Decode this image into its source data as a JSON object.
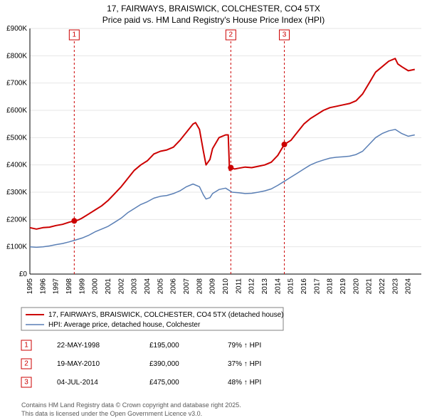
{
  "title_line1": "17, FAIRWAYS, BRAISWICK, COLCHESTER, CO4 5TX",
  "title_line2": "Price paid vs. HM Land Registry's House Price Index (HPI)",
  "chart": {
    "type": "line",
    "background_color": "#ffffff",
    "grid_color": "#e6e6e6",
    "axis_color": "#000000",
    "ylim": [
      0,
      900000
    ],
    "ytick_step": 100000,
    "y_labels": [
      "£0",
      "£100K",
      "£200K",
      "£300K",
      "£400K",
      "£500K",
      "£600K",
      "£700K",
      "£800K",
      "£900K"
    ],
    "x_years": [
      1995,
      1996,
      1997,
      1998,
      1999,
      2000,
      2001,
      2002,
      2003,
      2004,
      2005,
      2006,
      2007,
      2008,
      2009,
      2010,
      2011,
      2012,
      2013,
      2014,
      2015,
      2016,
      2017,
      2018,
      2019,
      2020,
      2021,
      2022,
      2023,
      2024
    ],
    "label_fontsize": 10,
    "series": [
      {
        "name": "17, FAIRWAYS, BRAISWICK, COLCHESTER, CO4 5TX (detached house)",
        "color": "#cc0000",
        "line_width": 2,
        "data": [
          [
            1995,
            170000
          ],
          [
            1995.5,
            165000
          ],
          [
            1996,
            170000
          ],
          [
            1996.5,
            172000
          ],
          [
            1997,
            178000
          ],
          [
            1997.5,
            182000
          ],
          [
            1998,
            190000
          ],
          [
            1998.4,
            195000
          ],
          [
            1998.5,
            195000
          ],
          [
            1998.8,
            200000
          ],
          [
            1999,
            205000
          ],
          [
            1999.5,
            220000
          ],
          [
            2000,
            235000
          ],
          [
            2000.5,
            250000
          ],
          [
            2001,
            270000
          ],
          [
            2001.5,
            295000
          ],
          [
            2002,
            320000
          ],
          [
            2002.5,
            350000
          ],
          [
            2003,
            380000
          ],
          [
            2003.5,
            400000
          ],
          [
            2004,
            415000
          ],
          [
            2004.5,
            440000
          ],
          [
            2005,
            450000
          ],
          [
            2005.5,
            455000
          ],
          [
            2006,
            465000
          ],
          [
            2006.5,
            490000
          ],
          [
            2007,
            520000
          ],
          [
            2007.5,
            550000
          ],
          [
            2007.7,
            555000
          ],
          [
            2008,
            530000
          ],
          [
            2008.3,
            450000
          ],
          [
            2008.5,
            400000
          ],
          [
            2008.8,
            420000
          ],
          [
            2009,
            460000
          ],
          [
            2009.5,
            500000
          ],
          [
            2010,
            510000
          ],
          [
            2010.2,
            510000
          ],
          [
            2010.3,
            380000
          ],
          [
            2010.4,
            390000
          ],
          [
            2010.7,
            385000
          ],
          [
            2011,
            388000
          ],
          [
            2011.5,
            392000
          ],
          [
            2012,
            390000
          ],
          [
            2012.5,
            395000
          ],
          [
            2013,
            400000
          ],
          [
            2013.5,
            410000
          ],
          [
            2014,
            435000
          ],
          [
            2014.5,
            475000
          ],
          [
            2015,
            490000
          ],
          [
            2015.5,
            520000
          ],
          [
            2016,
            550000
          ],
          [
            2016.5,
            570000
          ],
          [
            2017,
            585000
          ],
          [
            2017.5,
            600000
          ],
          [
            2018,
            610000
          ],
          [
            2018.5,
            615000
          ],
          [
            2019,
            620000
          ],
          [
            2019.5,
            625000
          ],
          [
            2020,
            635000
          ],
          [
            2020.5,
            660000
          ],
          [
            2021,
            700000
          ],
          [
            2021.5,
            740000
          ],
          [
            2022,
            760000
          ],
          [
            2022.5,
            780000
          ],
          [
            2023,
            790000
          ],
          [
            2023.2,
            770000
          ],
          [
            2023.5,
            760000
          ],
          [
            2024,
            745000
          ],
          [
            2024.5,
            750000
          ]
        ]
      },
      {
        "name": "HPI: Average price, detached house, Colchester",
        "color": "#5a7fb5",
        "line_width": 1.5,
        "data": [
          [
            1995,
            100000
          ],
          [
            1995.5,
            98000
          ],
          [
            1996,
            100000
          ],
          [
            1996.5,
            103000
          ],
          [
            1997,
            108000
          ],
          [
            1997.5,
            112000
          ],
          [
            1998,
            118000
          ],
          [
            1998.5,
            125000
          ],
          [
            1999,
            132000
          ],
          [
            1999.5,
            142000
          ],
          [
            2000,
            155000
          ],
          [
            2000.5,
            165000
          ],
          [
            2001,
            175000
          ],
          [
            2001.5,
            190000
          ],
          [
            2002,
            205000
          ],
          [
            2002.5,
            225000
          ],
          [
            2003,
            240000
          ],
          [
            2003.5,
            255000
          ],
          [
            2004,
            265000
          ],
          [
            2004.5,
            278000
          ],
          [
            2005,
            285000
          ],
          [
            2005.5,
            288000
          ],
          [
            2006,
            295000
          ],
          [
            2006.5,
            305000
          ],
          [
            2007,
            320000
          ],
          [
            2007.5,
            330000
          ],
          [
            2008,
            320000
          ],
          [
            2008.3,
            290000
          ],
          [
            2008.5,
            275000
          ],
          [
            2008.8,
            280000
          ],
          [
            2009,
            295000
          ],
          [
            2009.5,
            310000
          ],
          [
            2010,
            315000
          ],
          [
            2010.5,
            300000
          ],
          [
            2011,
            298000
          ],
          [
            2011.5,
            295000
          ],
          [
            2012,
            296000
          ],
          [
            2012.5,
            300000
          ],
          [
            2013,
            305000
          ],
          [
            2013.5,
            312000
          ],
          [
            2014,
            325000
          ],
          [
            2014.5,
            340000
          ],
          [
            2015,
            355000
          ],
          [
            2015.5,
            370000
          ],
          [
            2016,
            385000
          ],
          [
            2016.5,
            400000
          ],
          [
            2017,
            410000
          ],
          [
            2017.5,
            418000
          ],
          [
            2018,
            425000
          ],
          [
            2018.5,
            428000
          ],
          [
            2019,
            430000
          ],
          [
            2019.5,
            432000
          ],
          [
            2020,
            438000
          ],
          [
            2020.5,
            450000
          ],
          [
            2021,
            475000
          ],
          [
            2021.5,
            500000
          ],
          [
            2022,
            515000
          ],
          [
            2022.5,
            525000
          ],
          [
            2023,
            530000
          ],
          [
            2023.5,
            515000
          ],
          [
            2024,
            505000
          ],
          [
            2024.5,
            510000
          ]
        ]
      }
    ],
    "markers": [
      {
        "num": "1",
        "year": 1998.4,
        "line_color": "#cc0000",
        "line_dash": "3,3",
        "point_y": 195000
      },
      {
        "num": "2",
        "year": 2010.4,
        "line_color": "#cc0000",
        "line_dash": "3,3",
        "point_y": 390000
      },
      {
        "num": "3",
        "year": 2014.5,
        "line_color": "#cc0000",
        "line_dash": "3,3",
        "point_y": 475000
      }
    ]
  },
  "legend": {
    "border_color": "#808080",
    "items": [
      {
        "color": "#cc0000",
        "line_width": 2,
        "label": "17, FAIRWAYS, BRAISWICK, COLCHESTER, CO4 5TX (detached house)"
      },
      {
        "color": "#5a7fb5",
        "line_width": 1.5,
        "label": "HPI: Average price, detached house, Colchester"
      }
    ]
  },
  "sales_table": {
    "marker_color": "#cc0000",
    "rows": [
      {
        "num": "1",
        "date": "22-MAY-1998",
        "price": "£195,000",
        "delta": "79% ↑ HPI"
      },
      {
        "num": "2",
        "date": "19-MAY-2010",
        "price": "£390,000",
        "delta": "37% ↑ HPI"
      },
      {
        "num": "3",
        "date": "04-JUL-2014",
        "price": "£475,000",
        "delta": "48% ↑ HPI"
      }
    ]
  },
  "footer_line1": "Contains HM Land Registry data © Crown copyright and database right 2025.",
  "footer_line2": "This data is licensed under the Open Government Licence v3.0."
}
